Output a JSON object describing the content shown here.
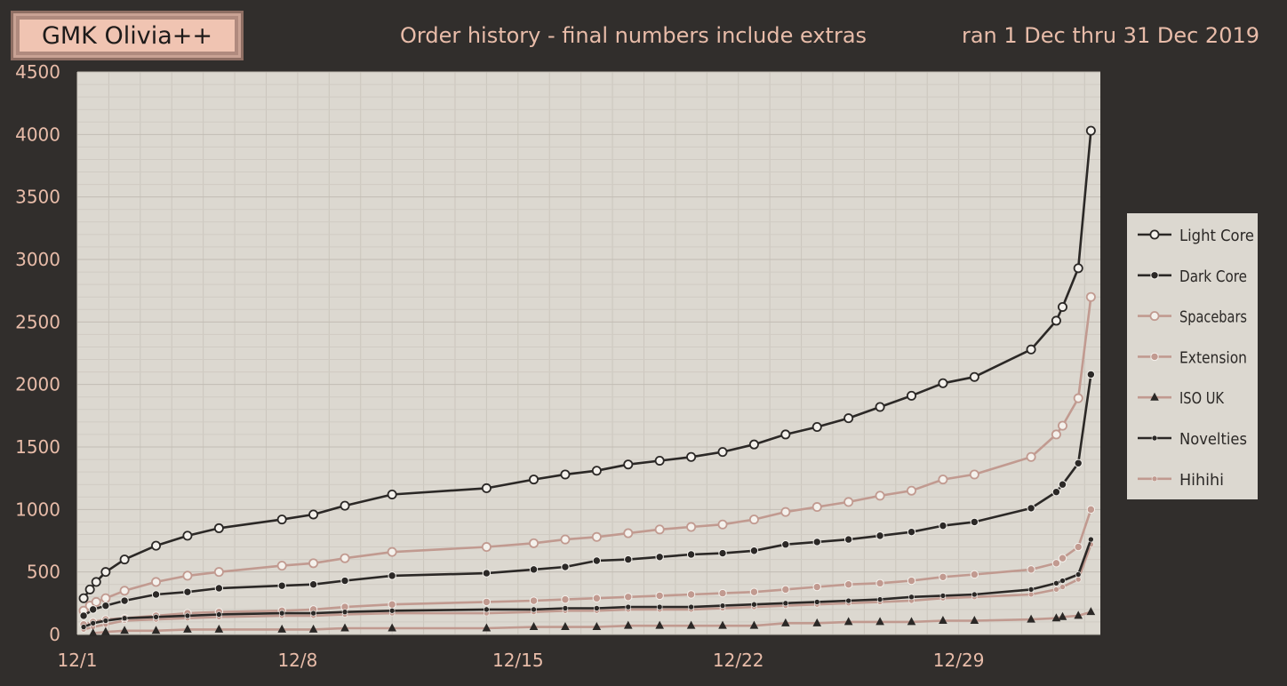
{
  "header": {
    "badge": "GMK Olivia++",
    "subtitle": "Order history - final numbers include extras",
    "date_range": "ran 1 Dec thru 31 Dec 2019"
  },
  "colors": {
    "background": "#312e2c",
    "plot_background": "#dcd8d0",
    "dark": "#2b2826",
    "rose": "#c19a90",
    "text": "#e8bca9"
  },
  "chart_data": {
    "type": "line",
    "xlabel": "",
    "ylabel": "",
    "x_ticks": [
      {
        "label": "12/1",
        "day": 1
      },
      {
        "label": "12/8",
        "day": 8
      },
      {
        "label": "12/15",
        "day": 15
      },
      {
        "label": "12/22",
        "day": 22
      },
      {
        "label": "12/29",
        "day": 29
      }
    ],
    "xlim": [
      "12/1",
      "1/2"
    ],
    "ylim": [
      0,
      4500
    ],
    "y_ticks": [
      0,
      500,
      1000,
      1500,
      2000,
      2500,
      3000,
      3500,
      4000,
      4500
    ],
    "grid": true,
    "legend_position": "right",
    "series": [
      {
        "name": "Light Core",
        "color": "#2b2826",
        "marker": "circle-open",
        "x": [
          1.2,
          1.4,
          1.6,
          1.9,
          2.5,
          3.5,
          4.5,
          5.5,
          7.5,
          8.5,
          9.5,
          11,
          14,
          15.5,
          16.5,
          17.5,
          18.5,
          19.5,
          20.5,
          21.5,
          22.5,
          23.5,
          24.5,
          25.5,
          26.5,
          27.5,
          28.5,
          29.5,
          31.3,
          32.1,
          32.3,
          32.8,
          33.2
        ],
        "values": [
          290,
          360,
          420,
          500,
          600,
          710,
          790,
          850,
          920,
          960,
          1030,
          1120,
          1170,
          1240,
          1280,
          1310,
          1360,
          1390,
          1420,
          1460,
          1520,
          1600,
          1660,
          1730,
          1820,
          1910,
          2010,
          2060,
          2280,
          2510,
          2620,
          2930,
          4030
        ]
      },
      {
        "name": "Dark Core",
        "color": "#2b2826",
        "marker": "circle-filled",
        "x": [
          1.2,
          1.5,
          1.9,
          2.5,
          3.5,
          4.5,
          5.5,
          7.5,
          8.5,
          9.5,
          11,
          14,
          15.5,
          16.5,
          17.5,
          18.5,
          19.5,
          20.5,
          21.5,
          22.5,
          23.5,
          24.5,
          25.5,
          26.5,
          27.5,
          28.5,
          29.5,
          31.3,
          32.1,
          32.3,
          32.8,
          33.2
        ],
        "values": [
          150,
          200,
          230,
          270,
          320,
          340,
          370,
          390,
          400,
          430,
          470,
          490,
          520,
          540,
          590,
          600,
          620,
          640,
          650,
          670,
          720,
          740,
          760,
          790,
          820,
          870,
          900,
          1010,
          1140,
          1200,
          1370,
          2080
        ]
      },
      {
        "name": "Spacebars",
        "color": "#c19a90",
        "marker": "circle-open",
        "x": [
          1.2,
          1.4,
          1.6,
          1.9,
          2.5,
          3.5,
          4.5,
          5.5,
          7.5,
          8.5,
          9.5,
          11,
          14,
          15.5,
          16.5,
          17.5,
          18.5,
          19.5,
          20.5,
          21.5,
          22.5,
          23.5,
          24.5,
          25.5,
          26.5,
          27.5,
          28.5,
          29.5,
          31.3,
          32.1,
          32.3,
          32.8,
          33.2
        ],
        "values": [
          190,
          230,
          260,
          290,
          350,
          420,
          470,
          500,
          550,
          570,
          610,
          660,
          700,
          730,
          760,
          780,
          810,
          840,
          860,
          880,
          920,
          980,
          1020,
          1060,
          1110,
          1150,
          1240,
          1280,
          1420,
          1600,
          1670,
          1890,
          2700
        ]
      },
      {
        "name": "Extension",
        "color": "#c19a90",
        "marker": "circle-filled",
        "x": [
          1.2,
          1.5,
          1.9,
          2.5,
          3.5,
          4.5,
          5.5,
          7.5,
          8.5,
          9.5,
          11,
          14,
          15.5,
          16.5,
          17.5,
          18.5,
          19.5,
          20.5,
          21.5,
          22.5,
          23.5,
          24.5,
          25.5,
          26.5,
          27.5,
          28.5,
          29.5,
          31.3,
          32.1,
          32.3,
          32.8,
          33.2
        ],
        "values": [
          80,
          100,
          120,
          130,
          150,
          170,
          180,
          190,
          200,
          220,
          240,
          260,
          270,
          280,
          290,
          300,
          310,
          320,
          330,
          340,
          360,
          380,
          400,
          410,
          430,
          460,
          480,
          520,
          570,
          610,
          700,
          1000
        ]
      },
      {
        "name": "ISO UK",
        "color": "#c19a90",
        "marker": "triangle-dark",
        "x": [
          1.5,
          1.9,
          2.5,
          3.5,
          4.5,
          5.5,
          7.5,
          8.5,
          9.5,
          11,
          14,
          15.5,
          16.5,
          17.5,
          18.5,
          19.5,
          20.5,
          21.5,
          22.5,
          23.5,
          24.5,
          25.5,
          26.5,
          27.5,
          28.5,
          29.5,
          31.3,
          32.1,
          32.3,
          32.8,
          33.2
        ],
        "values": [
          10,
          20,
          30,
          30,
          40,
          40,
          40,
          40,
          50,
          50,
          50,
          60,
          60,
          60,
          70,
          70,
          70,
          70,
          70,
          90,
          90,
          100,
          100,
          100,
          110,
          110,
          120,
          130,
          140,
          150,
          180
        ]
      },
      {
        "name": "Novelties",
        "color": "#2b2826",
        "marker": "dot-small",
        "x": [
          1.2,
          1.5,
          1.9,
          2.5,
          3.5,
          4.5,
          5.5,
          7.5,
          8.5,
          9.5,
          11,
          14,
          15.5,
          16.5,
          17.5,
          18.5,
          19.5,
          20.5,
          21.5,
          22.5,
          23.5,
          24.5,
          25.5,
          26.5,
          27.5,
          28.5,
          29.5,
          31.3,
          32.1,
          32.3,
          32.8,
          33.2
        ],
        "values": [
          60,
          90,
          110,
          130,
          140,
          150,
          160,
          170,
          170,
          180,
          190,
          200,
          200,
          210,
          210,
          220,
          220,
          220,
          230,
          240,
          250,
          260,
          270,
          280,
          300,
          310,
          320,
          360,
          410,
          430,
          480,
          760
        ]
      },
      {
        "name": "Hihihi",
        "color": "#c19a90",
        "marker": "dot-small",
        "x": [
          1.2,
          1.5,
          1.9,
          2.5,
          3.5,
          4.5,
          5.5,
          7.5,
          8.5,
          9.5,
          11,
          14,
          15.5,
          16.5,
          17.5,
          18.5,
          19.5,
          20.5,
          21.5,
          22.5,
          23.5,
          24.5,
          25.5,
          26.5,
          27.5,
          28.5,
          29.5,
          31.3,
          32.1,
          32.3,
          32.8,
          33.2
        ],
        "values": [
          40,
          60,
          80,
          110,
          120,
          130,
          140,
          150,
          150,
          160,
          170,
          170,
          180,
          190,
          190,
          200,
          200,
          200,
          210,
          220,
          230,
          240,
          250,
          260,
          270,
          290,
          300,
          320,
          360,
          380,
          440,
          720
        ]
      }
    ]
  }
}
